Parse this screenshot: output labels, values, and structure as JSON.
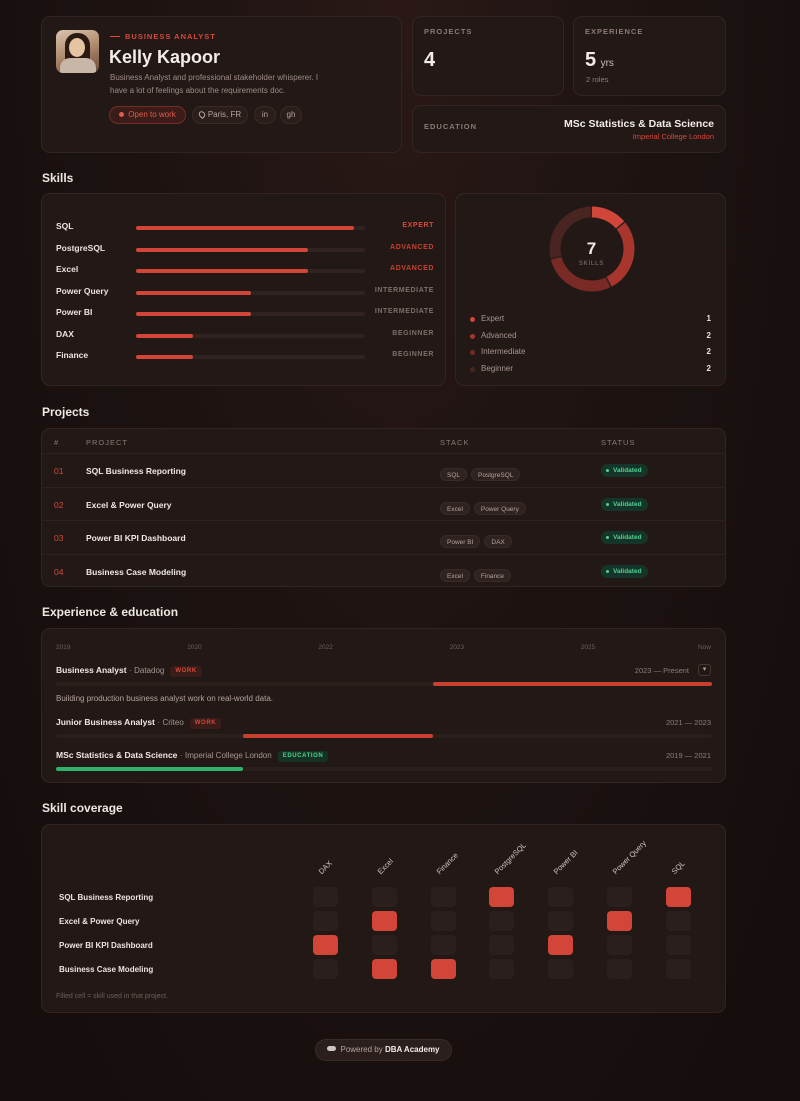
{
  "profile": {
    "role_kicker": "BUSINESS ANALYST",
    "name": "Kelly Kapoor",
    "bio_line1": "Business Analyst and professional stakeholder whisperer. I",
    "bio_line2": "have a lot of feelings about the requirements doc.",
    "open_to_work": "Open to work",
    "location": "Paris, FR",
    "linkedin": "in",
    "github": "gh"
  },
  "stats": {
    "projects_label": "PROJECTS",
    "projects_value": "4",
    "experience_label": "EXPERIENCE",
    "experience_value": "5",
    "experience_unit": "yrs",
    "experience_sub": "2 roles",
    "education_label": "EDUCATION",
    "education_degree": "MSc Statistics & Data Science",
    "education_school": "Imperial College London"
  },
  "skills": {
    "title": "Skills",
    "items": [
      {
        "name": "SQL",
        "level": "EXPERT",
        "fill": 0.95
      },
      {
        "name": "PostgreSQL",
        "level": "ADVANCED",
        "fill": 0.75
      },
      {
        "name": "Excel",
        "level": "ADVANCED",
        "fill": 0.75
      },
      {
        "name": "Power Query",
        "level": "INTERMEDIATE",
        "fill": 0.5
      },
      {
        "name": "Power BI",
        "level": "INTERMEDIATE",
        "fill": 0.5
      },
      {
        "name": "DAX",
        "level": "BEGINNER",
        "fill": 0.25
      },
      {
        "name": "Finance",
        "level": "BEGINNER",
        "fill": 0.25
      }
    ],
    "total": "7",
    "total_label": "SKILLS",
    "breakdown": [
      {
        "label": "Expert",
        "count": "1",
        "color": "#d2463a"
      },
      {
        "label": "Advanced",
        "count": "2",
        "color": "#a8362d"
      },
      {
        "label": "Intermediate",
        "count": "2",
        "color": "#7a2a24"
      },
      {
        "label": "Beginner",
        "count": "2",
        "color": "#4a2420"
      }
    ]
  },
  "projects": {
    "title": "Projects",
    "headers": {
      "num": "#",
      "project": "PROJECT",
      "stack": "STACK",
      "status": "STATUS"
    },
    "rows": [
      {
        "num": "01",
        "name": "SQL Business Reporting",
        "stack": [
          "SQL",
          "PostgreSQL"
        ],
        "status": "Validated"
      },
      {
        "num": "02",
        "name": "Excel & Power Query",
        "stack": [
          "Excel",
          "Power Query"
        ],
        "status": "Validated"
      },
      {
        "num": "03",
        "name": "Power BI KPI Dashboard",
        "stack": [
          "Power BI",
          "DAX"
        ],
        "status": "Validated"
      },
      {
        "num": "04",
        "name": "Business Case Modeling",
        "stack": [
          "Excel",
          "Finance"
        ],
        "status": "Validated"
      }
    ]
  },
  "experience": {
    "title": "Experience & education",
    "axis": [
      "2019",
      "2020",
      "2022",
      "2023",
      "2025",
      "Now"
    ],
    "entries": [
      {
        "role": "Business Analyst",
        "org": "Datadog",
        "type": "WORK",
        "dates": "2023 — Present",
        "desc": "Building production business analyst work on real-world data.",
        "start": 0.575,
        "end": 1.0,
        "color": "#c9402f",
        "expanded": true
      },
      {
        "role": "Junior Business Analyst",
        "org": "Criteo",
        "type": "WORK",
        "dates": "2021 — 2023",
        "start": 0.285,
        "end": 0.575,
        "color": "#c9402f"
      },
      {
        "role": "MSc Statistics & Data Science",
        "org": "Imperial College London",
        "type": "EDUCATION",
        "dates": "2019 — 2021",
        "start": 0.0,
        "end": 0.285,
        "color": "#2fb36a"
      }
    ]
  },
  "coverage": {
    "title": "Skill coverage",
    "columns": [
      "DAX",
      "Excel",
      "Finance",
      "PostgreSQL",
      "Power BI",
      "Power Query",
      "SQL"
    ],
    "rows": [
      {
        "name": "SQL Business Reporting",
        "cells": [
          0,
          0,
          0,
          1,
          0,
          0,
          1
        ]
      },
      {
        "name": "Excel & Power Query",
        "cells": [
          0,
          1,
          0,
          0,
          0,
          1,
          0
        ]
      },
      {
        "name": "Power BI KPI Dashboard",
        "cells": [
          1,
          0,
          0,
          0,
          1,
          0,
          0
        ]
      },
      {
        "name": "Business Case Modeling",
        "cells": [
          0,
          1,
          1,
          0,
          0,
          0,
          0
        ]
      }
    ],
    "note": "Filled cell = skill used in that project."
  },
  "footer": {
    "powered_by": "Powered by",
    "brand": "DBA Academy"
  }
}
